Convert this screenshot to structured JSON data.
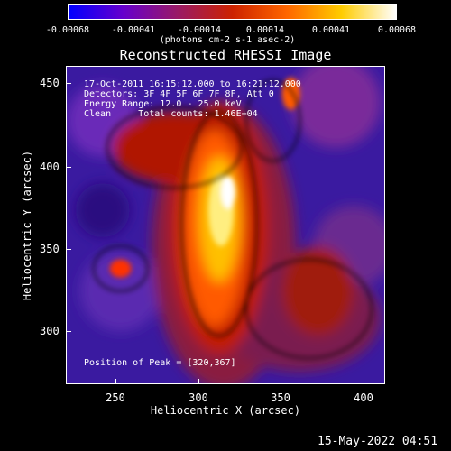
{
  "colorbar": {
    "ticks": [
      "-0.00068",
      "-0.00041",
      "-0.00014",
      "0.00014",
      "0.00041",
      "0.00068"
    ],
    "unit": "(photons cm-2 s-1 asec-2)",
    "colors": [
      "#0000ff",
      "#6600cc",
      "#991a66",
      "#cc2200",
      "#ff6600",
      "#ffcc00",
      "#ffffff"
    ]
  },
  "title": "Reconstructed RHESSI Image",
  "info": {
    "time": "17-Oct-2011 16:15:12.000 to 16:21:12.000",
    "detectors": "Detectors: 3F 4F 5F 6F 7F 8F, Att 0",
    "energy": "Energy Range: 12.0 - 25.0 keV",
    "clean": "Clean     Total counts: 1.46E+04",
    "peak": "Position of Peak = [320,367]"
  },
  "axes": {
    "xlabel": "Heliocentric X (arcsec)",
    "ylabel": "Heliocentric Y (arcsec)",
    "xticks": [
      "250",
      "300",
      "350",
      "400"
    ],
    "yticks": [
      "450",
      "400",
      "350",
      "300"
    ]
  },
  "datestamp": "15-May-2022 04:51"
}
